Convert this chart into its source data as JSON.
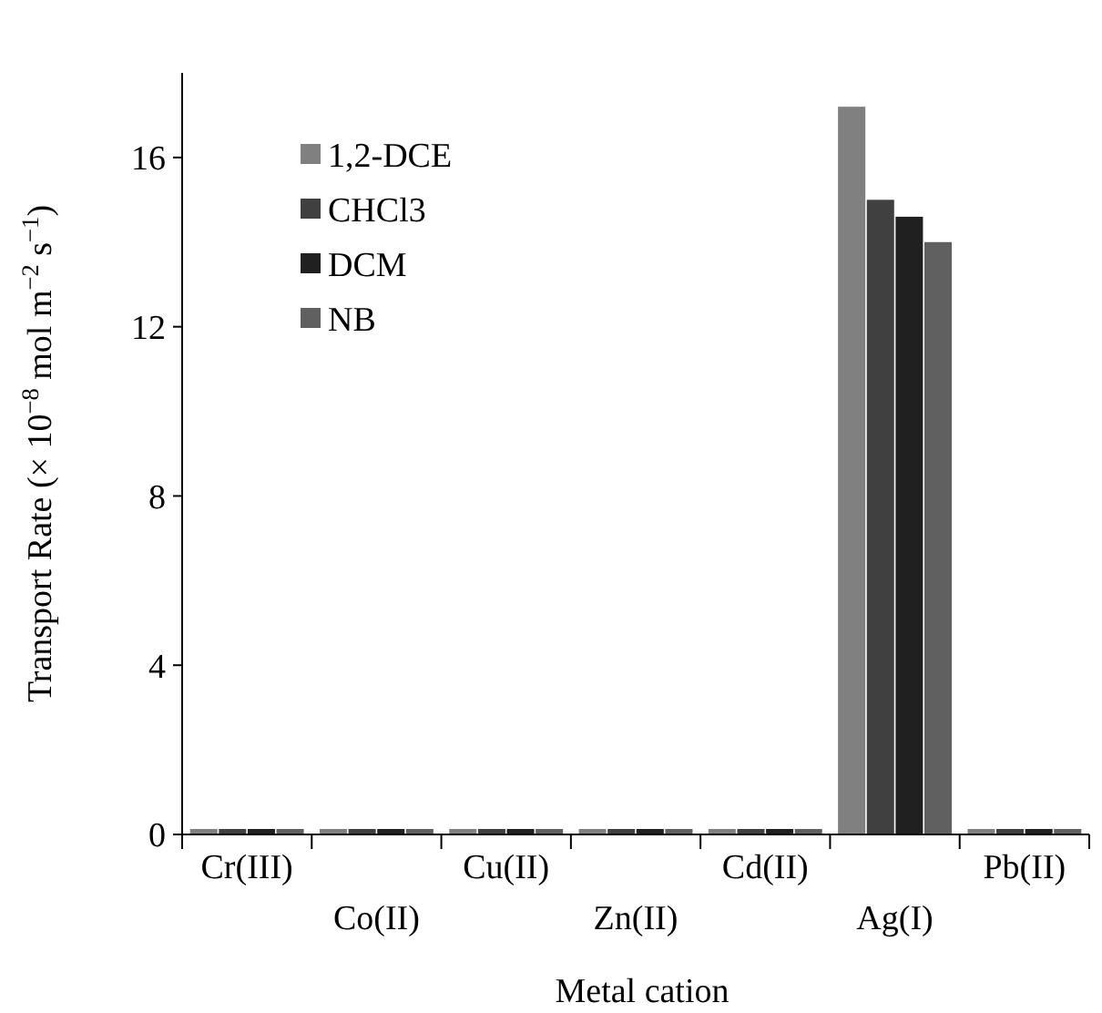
{
  "chart_data": {
    "type": "bar",
    "xlabel": "Metal cation",
    "ylabel": "Transport Rate (× 10$^{−8}$ mol m$^{−2}$ s$^{−1}$)",
    "categories": [
      "Cr(III)",
      "Co(II)",
      "Cu(II)",
      "Zn(II)",
      "Cd(II)",
      "Ag(I)",
      "Pb(II)"
    ],
    "series": [
      {
        "name": "1,2-DCE",
        "color": "#808080",
        "values": [
          0,
          0,
          0,
          0,
          0,
          17.2,
          0
        ]
      },
      {
        "name": "CHCl3",
        "color": "#404040",
        "values": [
          0,
          0,
          0,
          0,
          0,
          15.0,
          0
        ]
      },
      {
        "name": "DCM",
        "color": "#202020",
        "values": [
          0,
          0,
          0,
          0,
          0,
          14.6,
          0
        ]
      },
      {
        "name": "NB",
        "color": "#606060",
        "values": [
          0,
          0,
          0,
          0,
          0,
          14.0,
          0
        ]
      }
    ],
    "ylim": [
      0,
      18
    ],
    "yticks": [
      0,
      4,
      8,
      12,
      16
    ],
    "grid": false,
    "legend": "top left"
  }
}
